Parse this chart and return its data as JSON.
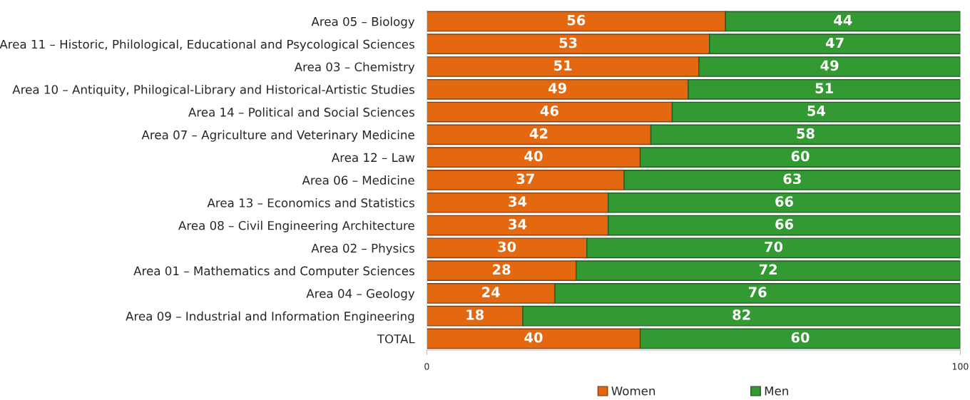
{
  "chart_data": {
    "type": "bar",
    "orientation": "horizontal",
    "stacked": true,
    "data_labels": true,
    "legend": "bottom",
    "grid": false,
    "categories": [
      "Area 05 – Biology",
      "Area 11 – Historic, Philological, Educational and Psycological Sciences",
      "Area 03 – Chemistry",
      "Area 10 – Antiquity, Philogical-Library and Historical-Artistic Studies",
      "Area 14 – Political and Social Sciences",
      "Area 07 – Agriculture and Veterinary Medicine",
      "Area 12 – Law",
      "Area 06 – Medicine",
      "Area 13 – Economics and Statistics",
      "Area 08 – Civil Engineering Architecture",
      "Area 02 – Physics",
      "Area 01 – Mathematics and Computer Sciences",
      "Area 04 – Geology",
      "Area 09 – Industrial and Information Engineering",
      "TOTAL"
    ],
    "series": [
      {
        "name": "Women",
        "color": "#e36810",
        "values": [
          56,
          53,
          51,
          49,
          46,
          42,
          40,
          37,
          34,
          34,
          30,
          28,
          24,
          18,
          40
        ]
      },
      {
        "name": "Men",
        "color": "#339933",
        "values": [
          44,
          47,
          49,
          51,
          54,
          58,
          60,
          63,
          66,
          66,
          70,
          72,
          76,
          82,
          60
        ]
      }
    ],
    "xlim": [
      0,
      100
    ],
    "xticks": [
      0,
      100
    ]
  }
}
